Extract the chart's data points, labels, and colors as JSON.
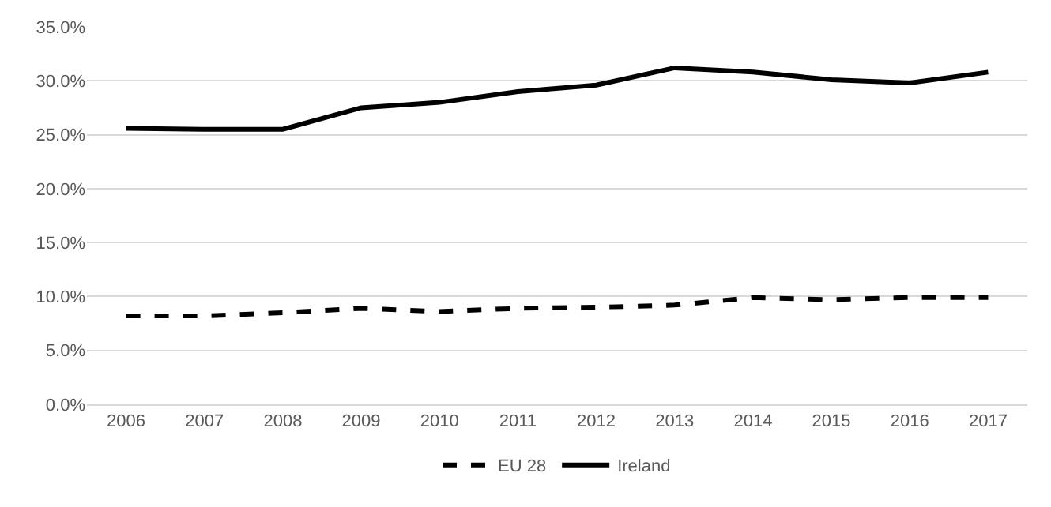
{
  "chart_data": {
    "type": "line",
    "categories": [
      "2006",
      "2007",
      "2008",
      "2009",
      "2010",
      "2011",
      "2012",
      "2013",
      "2014",
      "2015",
      "2016",
      "2017"
    ],
    "series": [
      {
        "name": "EU 28",
        "color": "#000000",
        "line_style": "dashed",
        "values": [
          8.2,
          8.2,
          8.5,
          8.9,
          8.6,
          8.9,
          9.0,
          9.2,
          9.9,
          9.7,
          9.9,
          9.9
        ]
      },
      {
        "name": "Ireland",
        "color": "#000000",
        "line_style": "solid",
        "values": [
          25.6,
          25.5,
          25.5,
          27.5,
          28.0,
          29.0,
          29.6,
          31.2,
          30.8,
          30.1,
          29.8,
          30.8
        ]
      }
    ],
    "ylim": [
      0,
      35
    ],
    "yticks": [
      {
        "value": 0,
        "label": "0.0%"
      },
      {
        "value": 5,
        "label": "5.0%"
      },
      {
        "value": 10,
        "label": "10.0%"
      },
      {
        "value": 15,
        "label": "15.0%"
      },
      {
        "value": 20,
        "label": "20.0%"
      },
      {
        "value": 25,
        "label": "25.0%"
      },
      {
        "value": 30,
        "label": "30.0%"
      },
      {
        "value": 35,
        "label": "35.0%"
      }
    ],
    "grid": "y",
    "legend": "bottom",
    "marker": "none"
  }
}
